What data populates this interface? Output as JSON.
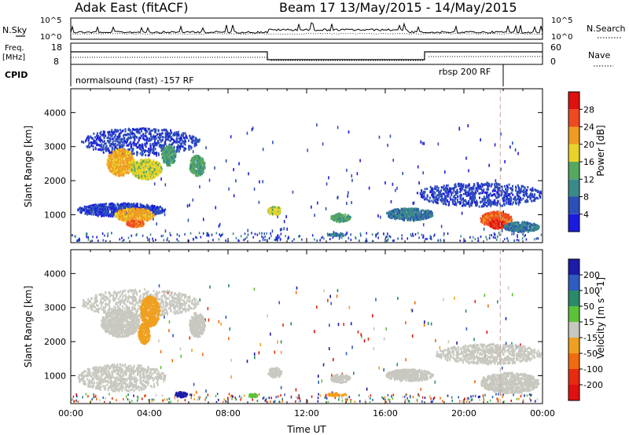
{
  "header": {
    "site": "Adak East (fitACF)",
    "beam_info": "Beam 17  13/May/2015 - 14/May/2015"
  },
  "top_panels": {
    "nsky_label": "N.Sky",
    "nsearch_label": "N.Search",
    "noise_ticks_left": [
      "10^5",
      "10^0"
    ],
    "noise_ticks_right": [
      "10^5",
      "10^0"
    ],
    "freq_label_top": "Freq.",
    "freq_label_unit": "[MHz]",
    "freq_ticks": [
      "18",
      "8"
    ],
    "nave_label": "Nave",
    "nave_ticks": [
      "60",
      "0"
    ],
    "cpid_label": "CPID",
    "cpid_left": "normalsound (fast) -157 RF",
    "cpid_right": "rbsp 200 RF"
  },
  "chart_data": [
    {
      "type": "heatmap",
      "panel": "power",
      "ylabel": "Slant Range [km]",
      "xlabel": "",
      "ylim": [
        180,
        4700
      ],
      "y_ticks": [
        "1000",
        "2000",
        "3000",
        "4000"
      ],
      "x_hours": [
        0,
        24
      ],
      "colorbar": {
        "label": "Power [dB]",
        "ticks": [
          "4",
          "8",
          "12",
          "16",
          "20",
          "24",
          "28"
        ],
        "colors": [
          "#1a1ae0",
          "#2c4fb8",
          "#3b8a8a",
          "#56a860",
          "#e8d428",
          "#f09a22",
          "#ee4a20",
          "#e01010"
        ]
      },
      "blobs": [
        {
          "t": [
            0.5,
            6.5
          ],
          "r": [
            2700,
            3500
          ],
          "level": 1
        },
        {
          "t": [
            1.8,
            3.2
          ],
          "r": [
            2100,
            2900
          ],
          "level": 5
        },
        {
          "t": [
            3.0,
            4.6
          ],
          "r": [
            2000,
            2600
          ],
          "level": 4
        },
        {
          "t": [
            4.6,
            5.3
          ],
          "r": [
            2400,
            3000
          ],
          "level": 3
        },
        {
          "t": [
            6.0,
            6.8
          ],
          "r": [
            2100,
            2700
          ],
          "level": 3
        },
        {
          "t": [
            0.3,
            4.8
          ],
          "r": [
            900,
            1300
          ],
          "level": 1
        },
        {
          "t": [
            2.2,
            4.2
          ],
          "r": [
            750,
            1150
          ],
          "level": 5
        },
        {
          "t": [
            2.8,
            3.7
          ],
          "r": [
            600,
            800
          ],
          "level": 6
        },
        {
          "t": [
            10.0,
            10.7
          ],
          "r": [
            950,
            1200
          ],
          "level": 4
        },
        {
          "t": [
            13.2,
            14.2
          ],
          "r": [
            750,
            1000
          ],
          "level": 3
        },
        {
          "t": [
            13.0,
            14.0
          ],
          "r": [
            330,
            420
          ],
          "level": 2
        },
        {
          "t": [
            16.0,
            18.4
          ],
          "r": [
            800,
            1150
          ],
          "level": 2
        },
        {
          "t": [
            17.5,
            24.0
          ],
          "r": [
            1200,
            1900
          ],
          "level": 1
        },
        {
          "t": [
            20.8,
            22.4
          ],
          "r": [
            600,
            1050
          ],
          "level": 6
        },
        {
          "t": [
            21.2,
            22.1
          ],
          "r": [
            550,
            800
          ],
          "level": 7
        },
        {
          "t": [
            22.0,
            23.8
          ],
          "r": [
            450,
            750
          ],
          "level": 2
        }
      ]
    },
    {
      "type": "heatmap",
      "panel": "velocity",
      "ylabel": "Slant Range [km]",
      "xlabel": "Time UT",
      "ylim": [
        180,
        4700
      ],
      "y_ticks": [
        "1000",
        "2000",
        "3000",
        "4000"
      ],
      "x_ticks": [
        "00:00",
        "04:00",
        "08:00",
        "12:00",
        "16:00",
        "20:00",
        "00:00"
      ],
      "colorbar": {
        "label": "Velocity [m s^-1]",
        "ticks": [
          "200",
          "100",
          "50",
          "15",
          "-15",
          "-50",
          "-100",
          "-200"
        ],
        "colors": [
          "#1c1ca8",
          "#2f5cc0",
          "#2a8a6a",
          "#5cc23a",
          "#c8c8c0",
          "#f0a020",
          "#f06a10",
          "#e82a10",
          "#e01010"
        ]
      },
      "blobs": [
        {
          "t": [
            0.5,
            6.5
          ],
          "r": [
            2700,
            3500
          ],
          "color": "#c8c8c0"
        },
        {
          "t": [
            1.5,
            3.5
          ],
          "r": [
            2100,
            2900
          ],
          "color": "#c8c8c0"
        },
        {
          "t": [
            3.5,
            4.5
          ],
          "r": [
            2400,
            3300
          ],
          "color": "#f0a020"
        },
        {
          "t": [
            3.4,
            4.0
          ],
          "r": [
            1900,
            2500
          ],
          "color": "#f0a020"
        },
        {
          "t": [
            6.0,
            6.8
          ],
          "r": [
            2100,
            2800
          ],
          "color": "#c8c8c0"
        },
        {
          "t": [
            0.3,
            4.8
          ],
          "r": [
            500,
            1300
          ],
          "color": "#c8c8c0"
        },
        {
          "t": [
            5.2,
            5.9
          ],
          "r": [
            330,
            480
          ],
          "color": "#1c1ca8"
        },
        {
          "t": [
            10.0,
            10.7
          ],
          "r": [
            900,
            1200
          ],
          "color": "#c8c8c0"
        },
        {
          "t": [
            13.2,
            14.2
          ],
          "r": [
            750,
            1000
          ],
          "color": "#c8c8c0"
        },
        {
          "t": [
            13.0,
            14.0
          ],
          "r": [
            360,
            450
          ],
          "color": "#f0a020"
        },
        {
          "t": [
            9.0,
            9.5
          ],
          "r": [
            330,
            430
          ],
          "color": "#5cc23a"
        },
        {
          "t": [
            16.0,
            18.4
          ],
          "r": [
            800,
            1150
          ],
          "color": "#c8c8c0"
        },
        {
          "t": [
            18.5,
            24.0
          ],
          "r": [
            1300,
            1900
          ],
          "color": "#c8c8c0"
        },
        {
          "t": [
            20.8,
            23.8
          ],
          "r": [
            450,
            1050
          ],
          "color": "#c8c8c0"
        }
      ]
    }
  ]
}
